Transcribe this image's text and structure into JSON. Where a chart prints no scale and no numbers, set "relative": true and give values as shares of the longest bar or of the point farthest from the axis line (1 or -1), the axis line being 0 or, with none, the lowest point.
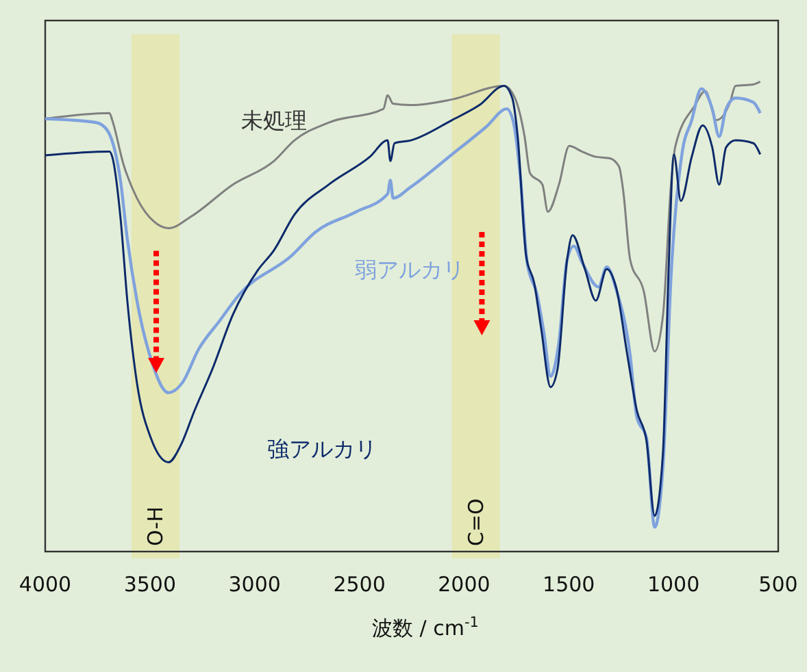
{
  "chart_data": {
    "type": "line",
    "xlabel": "波数 / cm$^{-1}$",
    "relative": true,
    "xlim": [
      4000,
      500
    ],
    "xticks": [
      4000,
      3500,
      3000,
      2500,
      2000,
      1500,
      1000,
      500
    ],
    "bands": [
      {
        "axis": "x",
        "from": 3588,
        "to": 3359,
        "label": "O-H",
        "color": "#e6e6b0"
      },
      {
        "axis": "x",
        "from": 2058,
        "to": 1829,
        "label": "C=O",
        "color": "#e6e6b0"
      }
    ],
    "series": [
      {
        "name": "未処理",
        "color": "#808080",
        "x": [
          4000,
          3693,
          3680,
          3627,
          3562,
          3483,
          3411,
          3300,
          3104,
          2908,
          2810,
          2646,
          2385,
          2365,
          2339,
          2254,
          2058,
          1809,
          1757,
          1711,
          1685,
          1626,
          1600,
          1547,
          1498,
          1436,
          1371,
          1305,
          1260,
          1240,
          1207,
          1142,
          1090,
          1050,
          1011,
          991,
          900,
          848,
          795,
          730,
          704,
          620,
          586
        ],
        "values": [
          0.921,
          0.933,
          0.918,
          0.825,
          0.752,
          0.703,
          0.688,
          0.714,
          0.781,
          0.831,
          0.875,
          0.913,
          0.942,
          0.971,
          0.953,
          0.95,
          0.962,
          0.991,
          0.965,
          0.883,
          0.805,
          0.781,
          0.723,
          0.781,
          0.863,
          0.851,
          0.84,
          0.837,
          0.819,
          0.767,
          0.621,
          0.554,
          0.426,
          0.504,
          0.787,
          0.863,
          0.948,
          0.98,
          0.918,
          0.956,
          0.991,
          0.994,
          1.0
        ]
      },
      {
        "name": "弱アルカリ",
        "color": "#7fa2de",
        "x": [
          4000,
          3758,
          3706,
          3640,
          3608,
          3562,
          3496,
          3411,
          3346,
          3267,
          3169,
          3071,
          2823,
          2712,
          2515,
          2365,
          2352,
          2339,
          2254,
          2058,
          1894,
          1796,
          1764,
          1731,
          1698,
          1652,
          1619,
          1587,
          1547,
          1508,
          1476,
          1436,
          1358,
          1319,
          1273,
          1207,
          1175,
          1129,
          1090,
          1050,
          1011,
          960,
          913,
          867,
          815,
          782,
          749,
          704,
          619,
          586
        ],
        "values": [
          0.921,
          0.913,
          0.898,
          0.787,
          0.665,
          0.534,
          0.411,
          0.338,
          0.359,
          0.431,
          0.49,
          0.548,
          0.63,
          0.679,
          0.723,
          0.761,
          0.79,
          0.752,
          0.776,
          0.845,
          0.904,
          0.942,
          0.913,
          0.796,
          0.612,
          0.548,
          0.466,
          0.373,
          0.446,
          0.621,
          0.65,
          0.615,
          0.563,
          0.606,
          0.557,
          0.417,
          0.286,
          0.242,
          0.052,
          0.184,
          0.592,
          0.845,
          0.918,
          0.985,
          0.942,
          0.883,
          0.942,
          0.965,
          0.956,
          0.933
        ]
      },
      {
        "name": "強アルカリ",
        "color": "#0d2a6b",
        "x": [
          4000,
          3693,
          3680,
          3640,
          3608,
          3562,
          3496,
          3411,
          3352,
          3287,
          3202,
          3104,
          2986,
          2908,
          2810,
          2646,
          2450,
          2365,
          2352,
          2332,
          2254,
          2058,
          1927,
          1809,
          1770,
          1744,
          1704,
          1665,
          1632,
          1587,
          1554,
          1508,
          1482,
          1423,
          1371,
          1319,
          1273,
          1220,
          1175,
          1129,
          1090,
          1050,
          1024,
          998,
          965,
          913,
          861,
          815,
          782,
          749,
          704,
          619,
          586
        ],
        "values": [
          0.843,
          0.851,
          0.84,
          0.708,
          0.534,
          0.359,
          0.242,
          0.19,
          0.227,
          0.3,
          0.388,
          0.504,
          0.598,
          0.641,
          0.717,
          0.781,
          0.84,
          0.875,
          0.831,
          0.869,
          0.875,
          0.918,
          0.95,
          0.991,
          0.965,
          0.883,
          0.63,
          0.571,
          0.475,
          0.35,
          0.388,
          0.621,
          0.673,
          0.601,
          0.534,
          0.601,
          0.56,
          0.417,
          0.3,
          0.236,
          0.076,
          0.213,
          0.592,
          0.845,
          0.746,
          0.84,
          0.907,
          0.86,
          0.781,
          0.86,
          0.875,
          0.869,
          0.845
        ]
      }
    ]
  }
}
